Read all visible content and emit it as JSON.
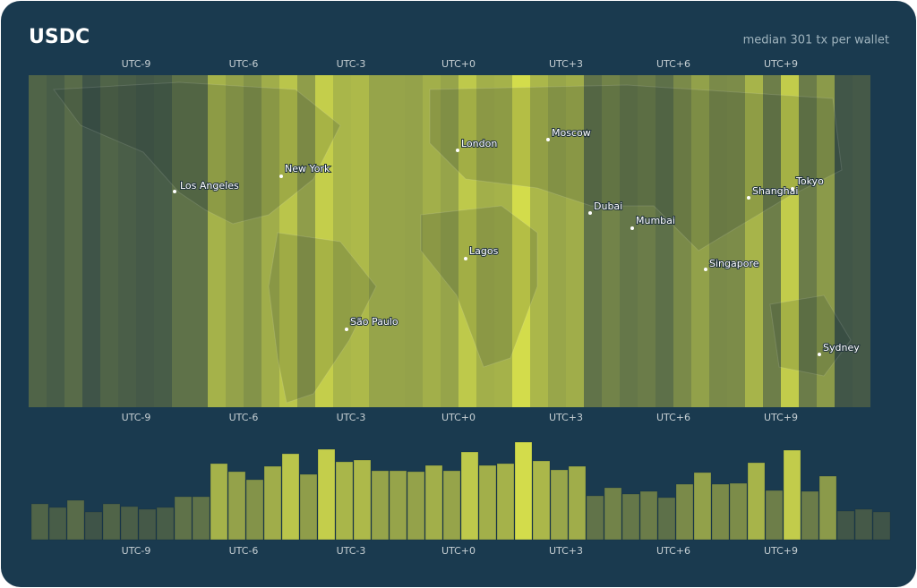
{
  "title": "USDC",
  "subtitle": "median 301 tx per wallet",
  "timezones": [
    "UTC-9",
    "UTC-6",
    "UTC-3",
    "UTC+0",
    "UTC+3",
    "UTC+6",
    "UTC+9"
  ],
  "cities": [
    "Los Angeles",
    "New York",
    "London",
    "Moscow",
    "Dubai",
    "Mumbai",
    "Lagos",
    "São Paulo",
    "Shanghai",
    "Tokyo",
    "Singapore",
    "Sydney"
  ],
  "chart_data": {
    "type": "bar",
    "values": [
      40,
      36,
      44,
      31,
      40,
      37,
      34,
      36,
      48,
      48,
      85,
      76,
      67,
      82,
      96,
      73,
      101,
      87,
      89,
      77,
      77,
      76,
      83,
      77,
      98,
      83,
      85,
      109,
      88,
      78,
      82,
      49,
      58,
      51,
      54,
      47,
      62,
      75,
      62,
      63,
      86,
      55,
      100,
      54,
      71,
      32,
      34,
      31
    ],
    "color_low": "#3f5448",
    "color_high": "#d3dc4b"
  }
}
